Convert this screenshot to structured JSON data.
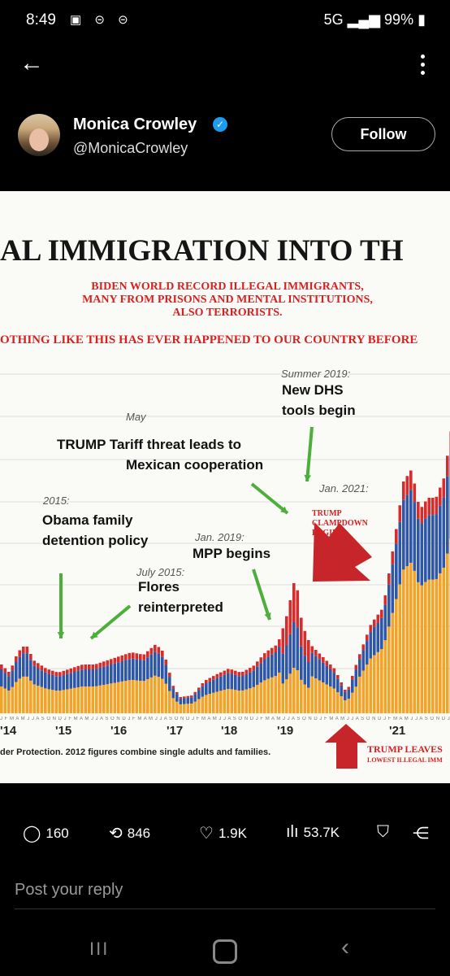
{
  "status": {
    "time": "8:49",
    "icons": "▣ ⊝ ⊝",
    "network": "5G",
    "battery": "99%"
  },
  "nav": {
    "back_icon": "←"
  },
  "author": {
    "name": "Monica Crowley",
    "handle": "@MonicaCrowley",
    "verified_icon": "✓",
    "follow_label": "Follow"
  },
  "infographic": {
    "title": "AL IMMIGRATION INTO TH",
    "subtitle_lines": [
      "BIDEN WORLD RECORD ILLEGAL IMMIGRANTS,",
      "MANY FROM PRISONS AND MENTAL INSTITUTIONS,",
      "ALSO TERRORISTS."
    ],
    "subtitle2": "OTHING LIKE THIS HAS EVER HAPPENED TO OUR COUNTRY BEFORE",
    "annotations": {
      "summer_2019_date": "Summer 2019:",
      "summer_2019_text_1": "New DHS",
      "summer_2019_text_2": "tools begin",
      "may": "May",
      "trump_tariff_1": "TRUMP Tariff threat leads to",
      "trump_tariff_2": "Mexican cooperation",
      "jan_2021": "Jan. 2021:",
      "y2015_date": "2015:",
      "obama_1": "Obama family",
      "obama_2": "detention policy",
      "jan_2019_date": "Jan. 2019:",
      "mpp": "MPP begins",
      "july_2015_date": "July 2015:",
      "flores_1": "Flores",
      "flores_2": "reinterpreted",
      "clampdown_1": "TRUMP",
      "clampdown_2": "CLAMPDOWN",
      "clampdown_3": "BEGINS",
      "trump_leaves_1": "TRUMP LEAVES",
      "trump_leaves_2": "LOWEST ILLEGAL IMM"
    },
    "month_ticks": "J F M A M J J A S O N D J F M A M J J A S O N D J F M A M J J A S O N D J F M A M J J A S O N D J F M A M J J A S O N D J F M A M J J A S O N D J F M A M J J A S O N D J F M",
    "years": [
      "'14",
      "'15",
      "'16",
      "'17",
      "'18",
      "'19",
      "'21"
    ],
    "source": "der Protection. 2012 figures combine single adults and families.",
    "colors": {
      "orange": "#f2a328",
      "blue": "#2e57a8",
      "red": "#d62c2c"
    }
  },
  "actions": {
    "comments": "160",
    "reposts": "846",
    "likes": "1.9K",
    "views": "53.7K"
  },
  "reply_placeholder": "Post your reply"
}
